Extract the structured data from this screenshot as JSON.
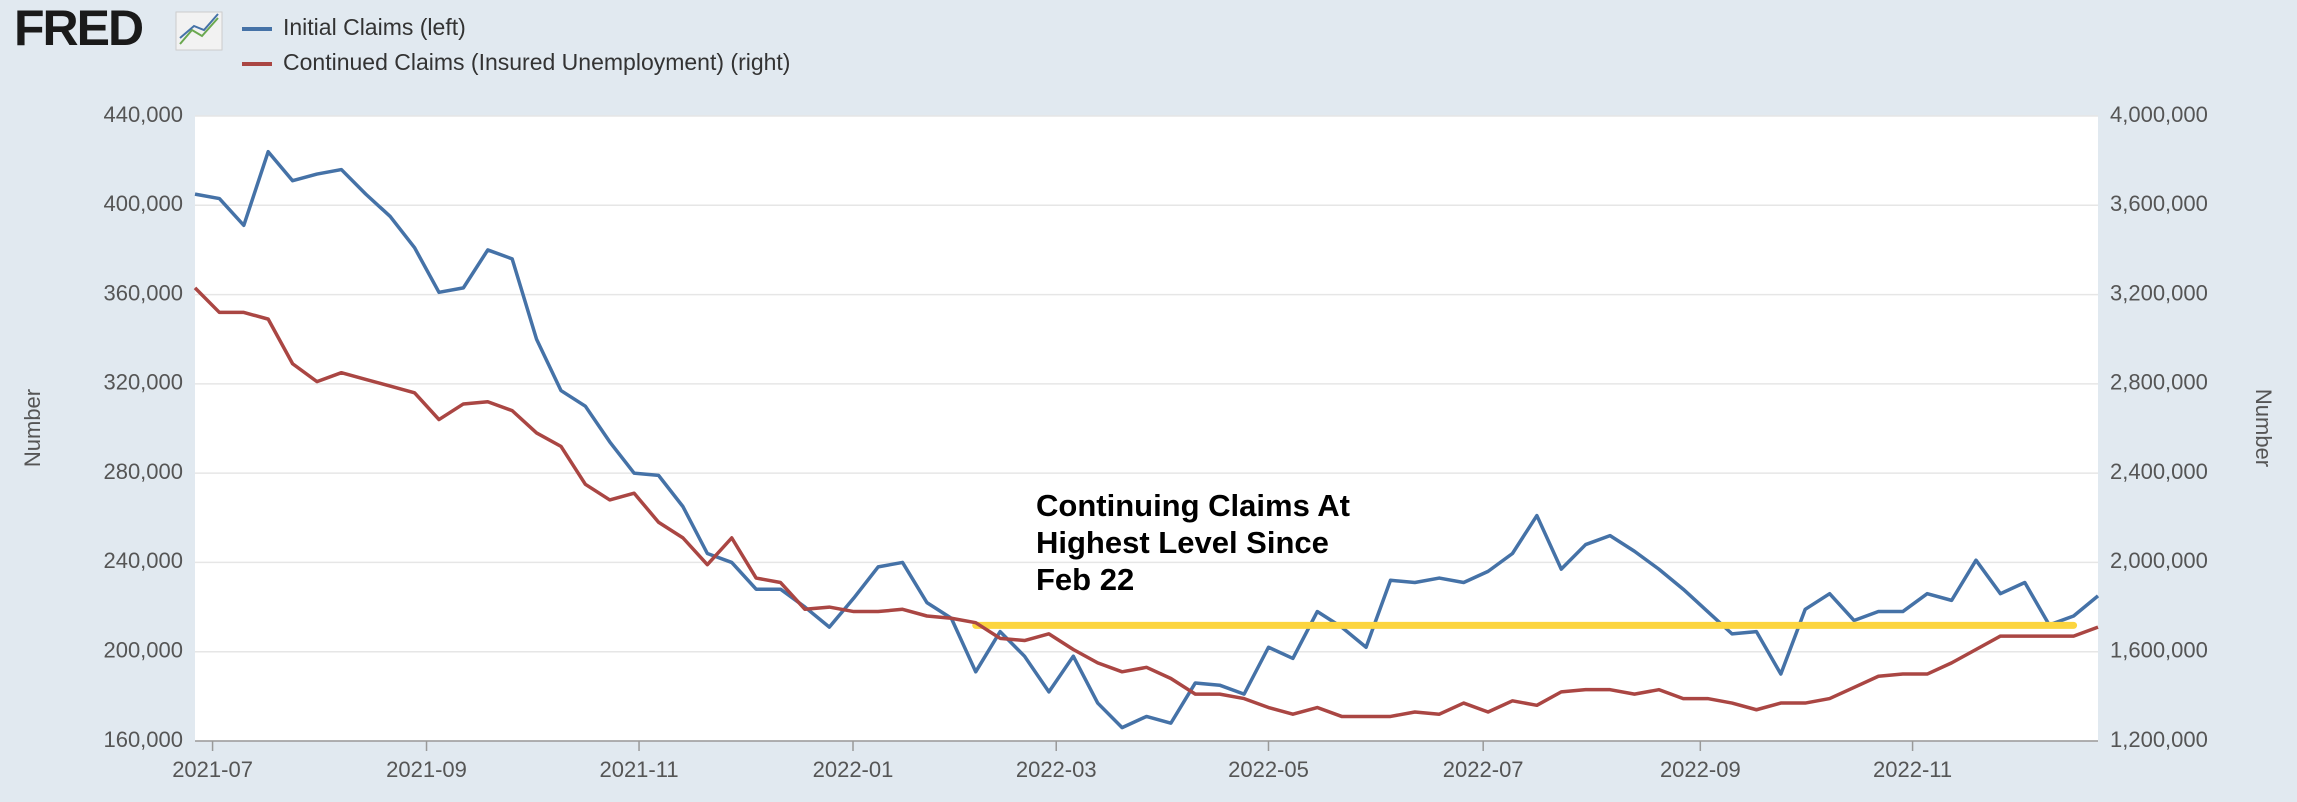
{
  "brand": "FRED",
  "chart_data": {
    "type": "line",
    "xlim": [
      0,
      78
    ],
    "xticks": [
      {
        "value": 0.72,
        "label": "2021-07"
      },
      {
        "value": 9.49,
        "label": "2021-09"
      },
      {
        "value": 18.2,
        "label": "2021-11"
      },
      {
        "value": 26.97,
        "label": "2022-01"
      },
      {
        "value": 35.3,
        "label": "2022-03"
      },
      {
        "value": 44.0,
        "label": "2022-05"
      },
      {
        "value": 52.8,
        "label": "2022-07"
      },
      {
        "value": 61.7,
        "label": "2022-09"
      },
      {
        "value": 70.4,
        "label": "2022-11"
      }
    ],
    "ylabel": "Number",
    "y2label": "Number",
    "ylim": [
      160000,
      440000
    ],
    "yticks": [
      {
        "value": 160000,
        "label": "160,000"
      },
      {
        "value": 200000,
        "label": "200,000"
      },
      {
        "value": 240000,
        "label": "240,000"
      },
      {
        "value": 280000,
        "label": "280,000"
      },
      {
        "value": 320000,
        "label": "320,000"
      },
      {
        "value": 360000,
        "label": "360,000"
      },
      {
        "value": 400000,
        "label": "400,000"
      },
      {
        "value": 440000,
        "label": "440,000"
      }
    ],
    "y2lim": [
      1200000,
      4000000
    ],
    "y2ticks": [
      {
        "value": 1200000,
        "label": "1,200,000"
      },
      {
        "value": 1600000,
        "label": "1,600,000"
      },
      {
        "value": 2000000,
        "label": "2,000,000"
      },
      {
        "value": 2400000,
        "label": "2,400,000"
      },
      {
        "value": 2800000,
        "label": "2,800,000"
      },
      {
        "value": 3200000,
        "label": "3,200,000"
      },
      {
        "value": 3600000,
        "label": "3,600,000"
      },
      {
        "value": 4000000,
        "label": "4,000,000"
      }
    ],
    "grid": true,
    "series": [
      {
        "name": "Initial Claims (left)",
        "color": "#4572a7",
        "axis": "y",
        "values": [
          405000,
          403000,
          391000,
          424000,
          411000,
          414000,
          416000,
          405000,
          395000,
          381000,
          361000,
          363000,
          380000,
          376000,
          340000,
          317000,
          310000,
          294000,
          280000,
          279000,
          265000,
          244000,
          240000,
          228000,
          228000,
          220000,
          211000,
          224000,
          238000,
          240000,
          222000,
          215000,
          191000,
          209000,
          198000,
          182000,
          198000,
          177000,
          166000,
          171000,
          168000,
          186000,
          185000,
          181000,
          202000,
          197000,
          218000,
          211000,
          202000,
          232000,
          231000,
          233000,
          231000,
          236000,
          244000,
          261000,
          237000,
          248000,
          252000,
          245000,
          237000,
          228000,
          218000,
          208000,
          209000,
          190000,
          219000,
          226000,
          214000,
          218000,
          218000,
          226000,
          223000,
          241000,
          226000,
          231000,
          212000,
          216000,
          225000
        ]
      },
      {
        "name": "Continued Claims (Insured Unemployment) (right)",
        "color": "#aa4643",
        "axis": "y2",
        "values": [
          3230000,
          3120000,
          3120000,
          3090000,
          2890000,
          2810000,
          2850000,
          2820000,
          2790000,
          2760000,
          2640000,
          2710000,
          2720000,
          2680000,
          2580000,
          2520000,
          2350000,
          2280000,
          2310000,
          2180000,
          2110000,
          1990000,
          2110000,
          1930000,
          1910000,
          1790000,
          1800000,
          1780000,
          1780000,
          1790000,
          1760000,
          1750000,
          1730000,
          1660000,
          1650000,
          1680000,
          1610000,
          1550000,
          1510000,
          1530000,
          1480000,
          1410000,
          1410000,
          1390000,
          1350000,
          1320000,
          1350000,
          1310000,
          1310000,
          1310000,
          1330000,
          1320000,
          1370000,
          1330000,
          1380000,
          1360000,
          1420000,
          1430000,
          1430000,
          1410000,
          1430000,
          1390000,
          1390000,
          1370000,
          1340000,
          1370000,
          1370000,
          1390000,
          1440000,
          1490000,
          1500000,
          1500000,
          1550000,
          1610000,
          1670000,
          1670000,
          1670000,
          1670000,
          1710000
        ]
      }
    ],
    "annotation": {
      "lines": [
        "Continuing Claims At",
        "Highest Level Since",
        "Feb 22"
      ],
      "value": 1718000,
      "axis": "y2",
      "x": [
        32,
        77
      ],
      "color": "#fcd53f"
    }
  }
}
